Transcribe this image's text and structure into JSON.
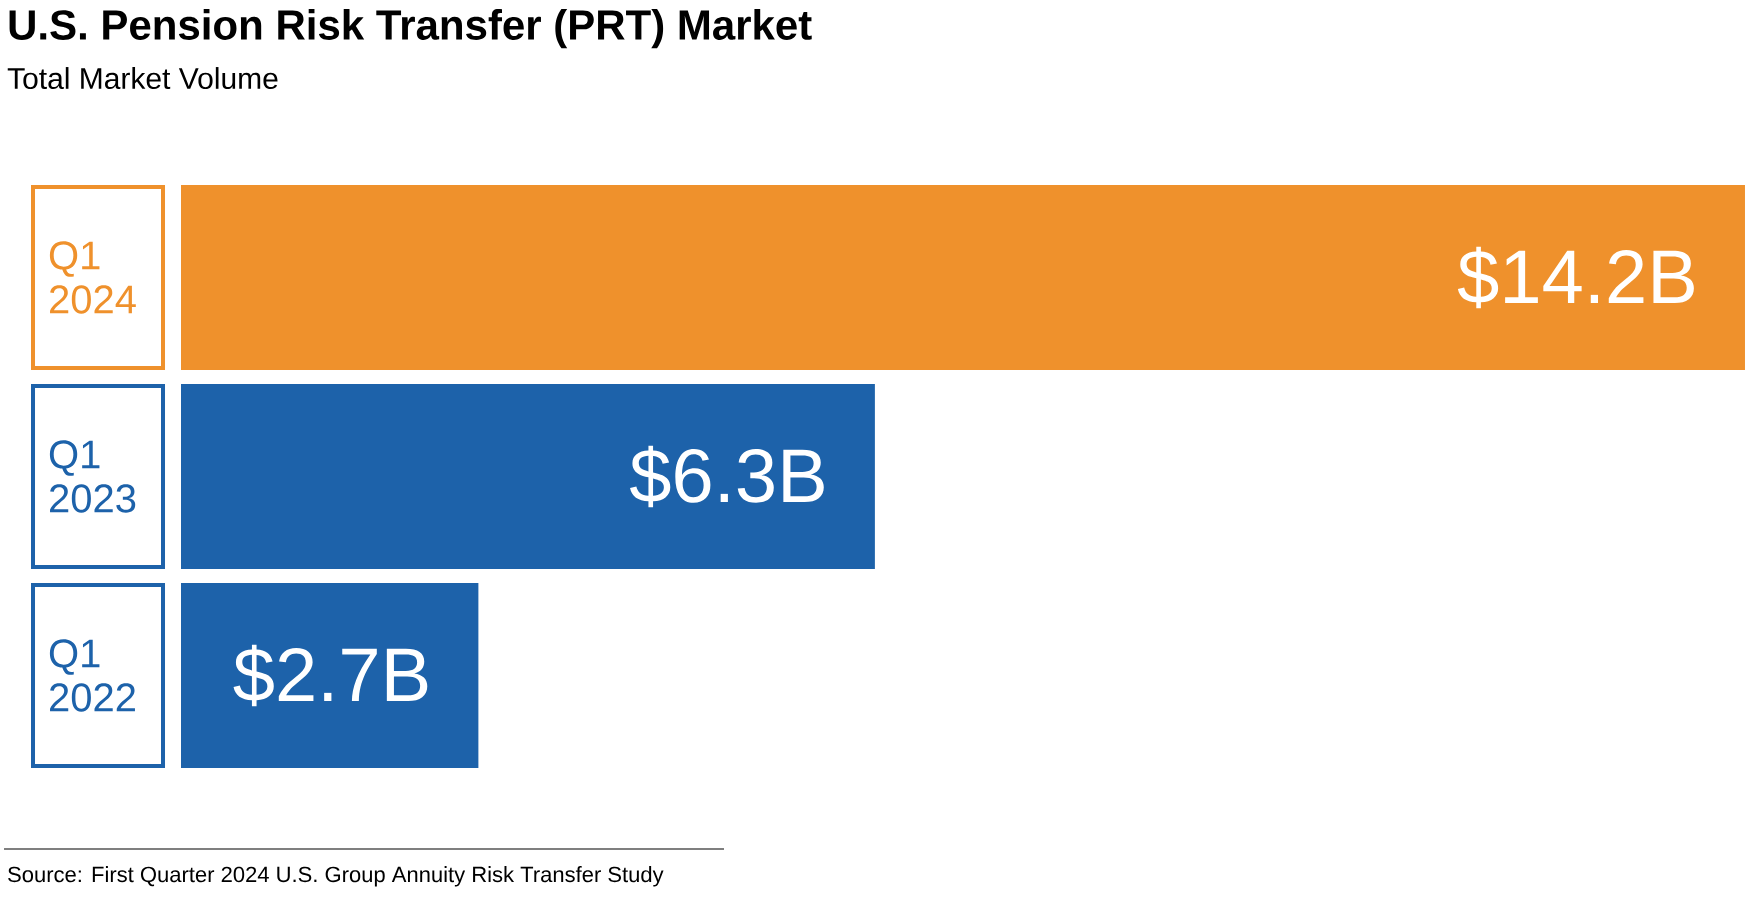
{
  "chart_data": {
    "type": "bar",
    "orientation": "horizontal",
    "title": "U.S. Pension Risk Transfer (PRT) Market",
    "subtitle": "Total Market Volume",
    "categories": [
      "Q1 2024",
      "Q1 2023",
      "Q1 2022"
    ],
    "values": [
      14.2,
      6.3,
      2.7
    ],
    "value_labels": [
      "$14.2B",
      "$6.3B",
      "$2.7B"
    ],
    "colors": [
      "#ef912c",
      "#1d62aa",
      "#1d62aa"
    ],
    "annotations": [
      "Source: First Quarter 2024 U.S. Group Annuity Risk Transfer Study"
    ]
  }
}
